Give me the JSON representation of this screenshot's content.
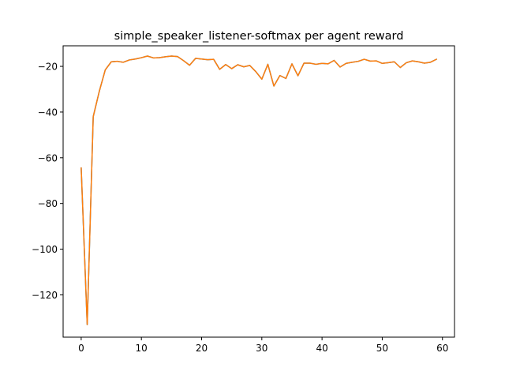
{
  "chart_data": {
    "type": "line",
    "title": "simple_speaker_listener-softmax per agent reward",
    "xlabel": "",
    "ylabel": "",
    "xlim": [
      -3,
      62
    ],
    "ylim": [
      -138.5,
      -11
    ],
    "xticks": [
      0,
      10,
      20,
      30,
      40,
      50,
      60
    ],
    "yticks": [
      -120,
      -100,
      -80,
      -60,
      -40,
      -20
    ],
    "ytick_labels": [
      "−120",
      "−100",
      "−80",
      "−60",
      "−40",
      "−20"
    ],
    "grid": false,
    "series": [
      {
        "color": "#1f77b4",
        "x": [
          0,
          1,
          2,
          3,
          4,
          5,
          6,
          7,
          8,
          9,
          10,
          11,
          12,
          13,
          14,
          15,
          16,
          17,
          18,
          19,
          20,
          21,
          22,
          23,
          24,
          25,
          26,
          27,
          28,
          29,
          30,
          31,
          32,
          33,
          34,
          35,
          36,
          37,
          38,
          39,
          40,
          41,
          42,
          43,
          44,
          45,
          46,
          47,
          48,
          49,
          50,
          51,
          52,
          53,
          54,
          55,
          56,
          57,
          58,
          59
        ],
        "y": [
          -64.5,
          -133,
          -42,
          -31,
          -21.5,
          -18,
          -17.8,
          -18.2,
          -17.2,
          -16.8,
          -16.2,
          -15.5,
          -16.3,
          -16.2,
          -15.8,
          -15.5,
          -15.7,
          -17.5,
          -19.5,
          -16.5,
          -16.8,
          -17.1,
          -16.9,
          -21.3,
          -19.2,
          -21.0,
          -19.3,
          -20.2,
          -19.6,
          -22.3,
          -25.6,
          -19.1,
          -28.6,
          -24.0,
          -25.3,
          -18.9,
          -24.1,
          -18.6,
          -18.6,
          -19.1,
          -18.7,
          -18.9,
          -17.4,
          -20.3,
          -18.7,
          -18.2,
          -17.8,
          -16.9,
          -17.7,
          -17.6,
          -18.7,
          -18.4,
          -18.0,
          -20.5,
          -18.4,
          -17.6,
          -18.0,
          -18.6,
          -18.2,
          -16.9
        ]
      },
      {
        "color": "#ff7f0e",
        "x": [
          0,
          1,
          2,
          3,
          4,
          5,
          6,
          7,
          8,
          9,
          10,
          11,
          12,
          13,
          14,
          15,
          16,
          17,
          18,
          19,
          20,
          21,
          22,
          23,
          24,
          25,
          26,
          27,
          28,
          29,
          30,
          31,
          32,
          33,
          34,
          35,
          36,
          37,
          38,
          39,
          40,
          41,
          42,
          43,
          44,
          45,
          46,
          47,
          48,
          49,
          50,
          51,
          52,
          53,
          54,
          55,
          56,
          57,
          58,
          59
        ],
        "y": [
          -64.5,
          -133,
          -42,
          -31,
          -21.5,
          -18,
          -17.8,
          -18.2,
          -17.2,
          -16.8,
          -16.2,
          -15.5,
          -16.3,
          -16.2,
          -15.8,
          -15.5,
          -15.7,
          -17.5,
          -19.5,
          -16.5,
          -16.8,
          -17.1,
          -16.9,
          -21.3,
          -19.2,
          -21.0,
          -19.3,
          -20.2,
          -19.6,
          -22.3,
          -25.6,
          -19.1,
          -28.6,
          -24.0,
          -25.3,
          -18.9,
          -24.1,
          -18.6,
          -18.6,
          -19.1,
          -18.7,
          -18.9,
          -17.4,
          -20.3,
          -18.7,
          -18.2,
          -17.8,
          -16.9,
          -17.7,
          -17.6,
          -18.7,
          -18.4,
          -18.0,
          -20.5,
          -18.4,
          -17.6,
          -18.0,
          -18.6,
          -18.2,
          -16.9
        ]
      }
    ]
  }
}
